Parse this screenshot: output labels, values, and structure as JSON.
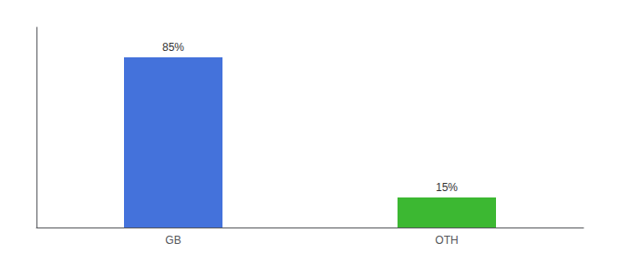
{
  "chart_data": {
    "type": "bar",
    "categories": [
      "GB",
      "OTH"
    ],
    "values": [
      85,
      15
    ],
    "value_labels": [
      "85%",
      "15%"
    ],
    "colors": [
      "#4472db",
      "#3cb832"
    ],
    "ylim": [
      0,
      100
    ],
    "yticks": [],
    "tick_labels": "x",
    "data_labels": true,
    "grid": false
  }
}
